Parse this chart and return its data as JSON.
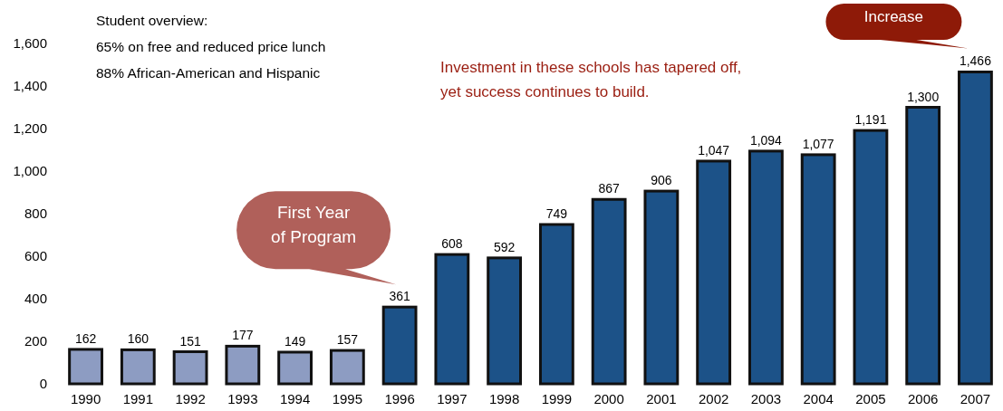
{
  "chart_data": {
    "type": "bar",
    "categories": [
      "1990",
      "1991",
      "1992",
      "1993",
      "1994",
      "1995",
      "1996",
      "1997",
      "1998",
      "1999",
      "2000",
      "2001",
      "2002",
      "2003",
      "2004",
      "2005",
      "2006",
      "2007"
    ],
    "values": [
      162,
      160,
      151,
      177,
      149,
      157,
      361,
      608,
      592,
      749,
      867,
      906,
      1047,
      1094,
      1077,
      1191,
      1300,
      1466
    ],
    "colors": [
      "#8d9cc2",
      "#8d9cc2",
      "#8d9cc2",
      "#8d9cc2",
      "#8d9cc2",
      "#8d9cc2",
      "#1c5288",
      "#1c5288",
      "#1c5288",
      "#1c5288",
      "#1c5288",
      "#1c5288",
      "#1c5288",
      "#1c5288",
      "#1c5288",
      "#1c5288",
      "#1c5288",
      "#1c5288"
    ],
    "ylim": [
      0,
      1600
    ],
    "yticks": [
      0,
      200,
      400,
      600,
      {
        "value": 800,
        "label": "800"
      },
      {
        "value": 1000,
        "label": "1,000"
      },
      {
        "value": 1200,
        "label": "1,200"
      },
      {
        "value": 1400,
        "label": "1,400"
      },
      {
        "value": 1600,
        "label": "1,600"
      }
    ],
    "value_labels": [
      "162",
      "160",
      "151",
      "177",
      "149",
      "157",
      "361",
      "608",
      "592",
      "749",
      "867",
      "906",
      "1,047",
      "1,094",
      "1,077",
      "1,191",
      "1,300",
      "1,466"
    ],
    "grid": false,
    "annotations": [
      "Student overview:",
      "65% on free and reduced price lunch",
      "88% African-American and Hispanic",
      "Investment in these schools has tapered off, yet success continues to build.",
      "First Year of Program",
      "Increase"
    ]
  }
}
